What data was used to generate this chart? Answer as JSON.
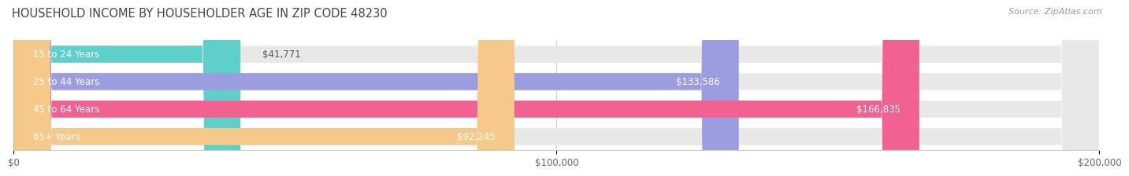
{
  "title": "HOUSEHOLD INCOME BY HOUSEHOLDER AGE IN ZIP CODE 48230",
  "source": "Source: ZipAtlas.com",
  "categories": [
    "15 to 24 Years",
    "25 to 44 Years",
    "45 to 64 Years",
    "65+ Years"
  ],
  "values": [
    41771,
    133586,
    166835,
    92245
  ],
  "bar_colors": [
    "#5ecfca",
    "#9b9de0",
    "#f06292",
    "#f5c98a"
  ],
  "bar_bg_color": "#e8e8e8",
  "max_value": 200000,
  "x_ticks": [
    0,
    100000,
    200000
  ],
  "x_tick_labels": [
    "$0",
    "$100,000",
    "$200,000"
  ],
  "value_labels": [
    "$41,771",
    "$133,586",
    "$166,835",
    "$92,245"
  ],
  "title_fontsize": 10.5,
  "source_fontsize": 8,
  "tick_fontsize": 8.5,
  "bar_label_fontsize": 8.5,
  "category_fontsize": 8.5,
  "background_color": "#ffffff",
  "bar_height": 0.62,
  "figsize": [
    14.06,
    2.33
  ]
}
